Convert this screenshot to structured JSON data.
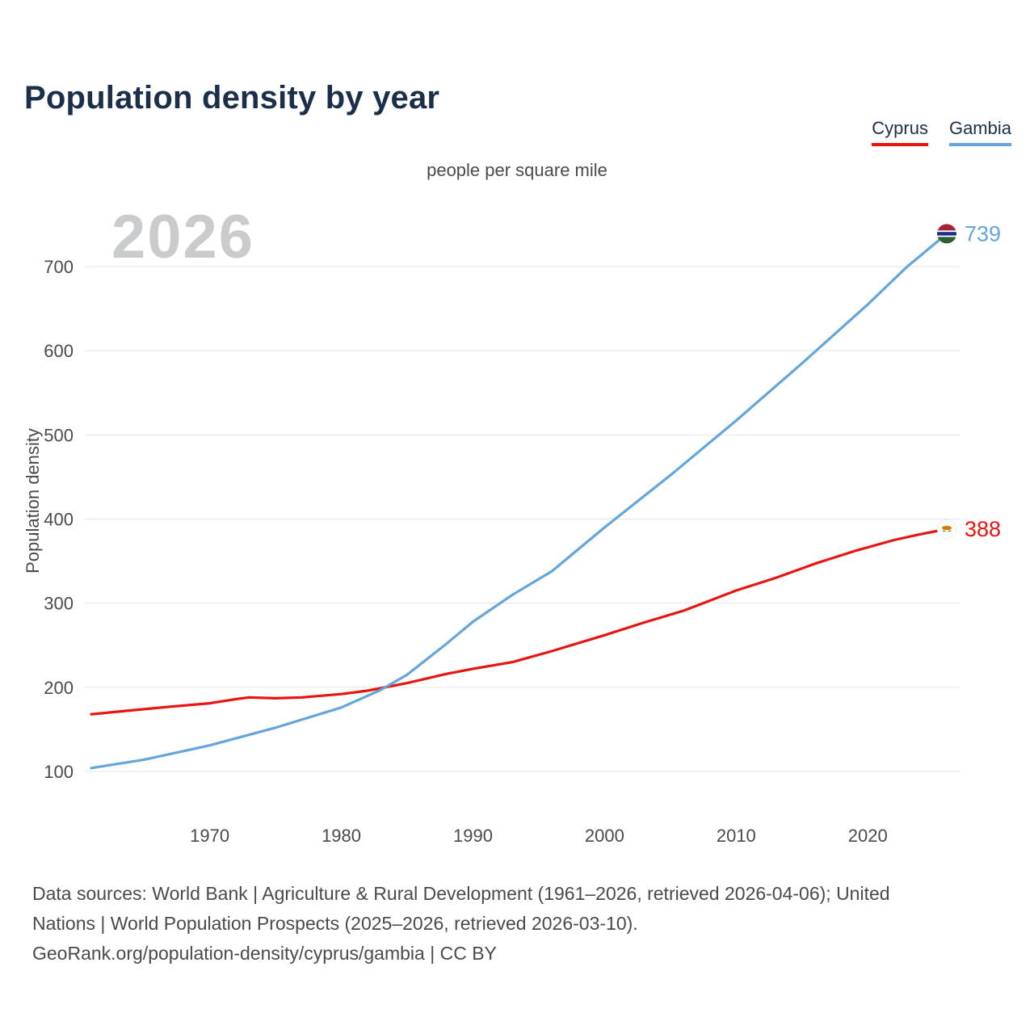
{
  "page": {
    "title": "Population density by year",
    "subtitle": "people per square mile",
    "watermark": "2026",
    "footer_lines": [
      "Data sources: World Bank | Agriculture & Rural Development (1961–2026, retrieved 2026-04-06); United",
      "Nations | World Population Prospects (2025–2026, retrieved 2026-03-10).",
      "GeoRank.org/population-density/cyprus/gambia | CC BY"
    ]
  },
  "legend": [
    {
      "label": "Cyprus",
      "color": "#e8140f"
    },
    {
      "label": "Gambia",
      "color": "#64a5dc"
    }
  ],
  "chart_data": {
    "type": "line",
    "title": "Population density by year",
    "subtitle": "people per square mile",
    "unit": "people per square mile",
    "xlabel": "",
    "ylabel": "Population density",
    "x_range": [
      1961,
      2026
    ],
    "x_ticks": [
      1970,
      1980,
      1990,
      2000,
      2010,
      2020
    ],
    "y_ticks": [
      100,
      200,
      300,
      400,
      500,
      600,
      700
    ],
    "grid": "horizontal",
    "legend_position": "top-right",
    "series": [
      {
        "name": "Cyprus",
        "color": "#e8140f",
        "flag": "cyprus",
        "x": [
          1961,
          1963,
          1965,
          1967,
          1970,
          1972,
          1973,
          1975,
          1977,
          1980,
          1982,
          1985,
          1988,
          1990,
          1993,
          1996,
          2000,
          2003,
          2006,
          2010,
          2013,
          2016,
          2019,
          2022,
          2024,
          2026
        ],
        "values": [
          168,
          171,
          174,
          177,
          181,
          186,
          188,
          187,
          188,
          192,
          196,
          205,
          216,
          222,
          230,
          243,
          262,
          277,
          291,
          315,
          330,
          347,
          362,
          375,
          382,
          388
        ]
      },
      {
        "name": "Gambia",
        "color": "#64a5dc",
        "flag": "gambia",
        "x": [
          1961,
          1965,
          1970,
          1975,
          1980,
          1983,
          1985,
          1988,
          1990,
          1993,
          1996,
          2000,
          2005,
          2010,
          2015,
          2020,
          2023,
          2026
        ],
        "values": [
          104,
          114,
          131,
          152,
          176,
          197,
          215,
          252,
          278,
          310,
          338,
          390,
          452,
          517,
          585,
          655,
          700,
          739
        ]
      }
    ]
  }
}
